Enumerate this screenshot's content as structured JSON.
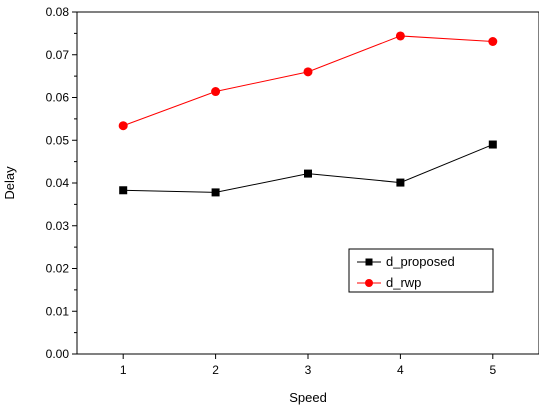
{
  "chart_data": {
    "type": "line",
    "title": "",
    "xlabel": "Speed",
    "ylabel": "Delay",
    "x": [
      1,
      2,
      3,
      4,
      5
    ],
    "xlim": [
      0.5,
      5.5
    ],
    "ylim": [
      0.0,
      0.08
    ],
    "x_ticks": [
      "1",
      "2",
      "3",
      "4",
      "5"
    ],
    "y_ticks": [
      "0.00",
      "0.01",
      "0.02",
      "0.03",
      "0.04",
      "0.05",
      "0.06",
      "0.07",
      "0.08"
    ],
    "grid": false,
    "legend_position": "lower-right",
    "series": [
      {
        "name": "d_proposed",
        "values": [
          0.0383,
          0.0378,
          0.0422,
          0.0401,
          0.049
        ],
        "color": "#000000",
        "marker": "square"
      },
      {
        "name": "d_rwp",
        "values": [
          0.0534,
          0.0614,
          0.066,
          0.0744,
          0.0731
        ],
        "color": "#ff0000",
        "marker": "circle"
      }
    ]
  }
}
